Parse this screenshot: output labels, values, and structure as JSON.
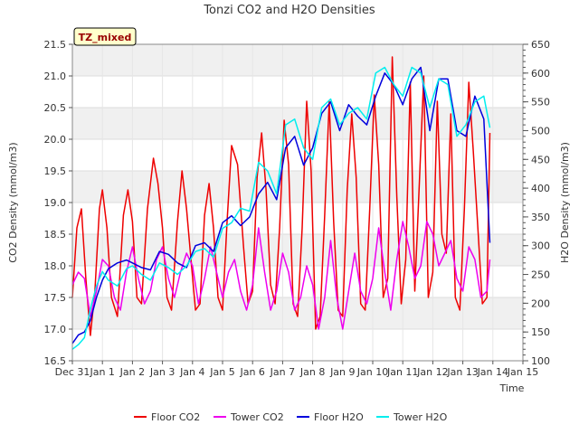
{
  "chart_data": {
    "type": "line",
    "title": "Tonzi CO2 and H2O Densities",
    "badge": "TZ_mixed",
    "xlabel": "Time",
    "ylabel_left": "CO2 Density (mmol/m3)",
    "ylabel_right": "H2O Density (mmol/m3)",
    "x_tick_labels": [
      "Dec 31",
      "Jan 1",
      "Jan 2",
      "Jan 3",
      "Jan 4",
      "Jan 5",
      "Jan 6",
      "Jan 7",
      "Jan 8",
      "Jan 9",
      "Jan 10",
      "Jan 11",
      "Jan 12",
      "Jan 13",
      "Jan 14",
      "Jan 15"
    ],
    "xlim": [
      0,
      15
    ],
    "ylim_left": [
      16.5,
      21.5
    ],
    "yticks_left": [
      "16.5",
      "17.0",
      "17.5",
      "18.0",
      "18.5",
      "19.0",
      "19.5",
      "20.0",
      "20.5",
      "21.0",
      "21.5"
    ],
    "ylim_right": [
      100,
      650
    ],
    "yticks_right": [
      "100",
      "150",
      "200",
      "250",
      "300",
      "350",
      "400",
      "450",
      "500",
      "550",
      "600",
      "650"
    ],
    "legend_position": "bottom-center",
    "series": [
      {
        "name": "Floor CO2",
        "axis": "left",
        "color": "#ee0000",
        "x": [
          0.0,
          0.15,
          0.3,
          0.45,
          0.6,
          0.75,
          0.9,
          1.0,
          1.15,
          1.3,
          1.5,
          1.7,
          1.85,
          2.0,
          2.15,
          2.3,
          2.5,
          2.7,
          2.85,
          3.0,
          3.15,
          3.3,
          3.5,
          3.65,
          3.8,
          3.95,
          4.1,
          4.25,
          4.4,
          4.55,
          4.7,
          4.85,
          5.0,
          5.15,
          5.3,
          5.5,
          5.7,
          5.85,
          6.0,
          6.15,
          6.3,
          6.45,
          6.6,
          6.75,
          6.9,
          7.05,
          7.2,
          7.35,
          7.5,
          7.65,
          7.8,
          7.95,
          8.1,
          8.25,
          8.4,
          8.55,
          8.7,
          8.85,
          9.0,
          9.15,
          9.3,
          9.45,
          9.6,
          9.75,
          9.9,
          10.05,
          10.2,
          10.35,
          10.5,
          10.65,
          10.8,
          10.95,
          11.1,
          11.25,
          11.4,
          11.55,
          11.7,
          11.85,
          12.0,
          12.15,
          12.3,
          12.45,
          12.6,
          12.75,
          12.9,
          13.05,
          13.2,
          13.35,
          13.5,
          13.65,
          13.8,
          13.9
        ],
        "values": [
          17.5,
          18.6,
          18.9,
          17.8,
          16.9,
          17.6,
          18.9,
          19.2,
          18.6,
          17.5,
          17.2,
          18.8,
          19.2,
          18.7,
          17.5,
          17.4,
          18.9,
          19.7,
          19.3,
          18.6,
          17.5,
          17.3,
          18.7,
          19.5,
          18.9,
          18.1,
          17.3,
          17.4,
          18.8,
          19.3,
          18.6,
          17.5,
          17.3,
          18.7,
          19.9,
          19.6,
          18.3,
          17.4,
          17.6,
          19.4,
          20.1,
          19.2,
          17.7,
          17.4,
          18.6,
          20.3,
          19.6,
          17.4,
          17.2,
          18.6,
          20.6,
          19.5,
          17.0,
          17.2,
          18.8,
          20.6,
          18.7,
          17.3,
          17.2,
          19.2,
          20.4,
          19.4,
          17.4,
          17.3,
          18.9,
          20.7,
          19.6,
          17.5,
          17.8,
          21.3,
          19.1,
          17.4,
          18.1,
          20.9,
          17.6,
          19.3,
          21.0,
          17.5,
          17.9,
          20.6,
          18.5,
          18.2,
          20.4,
          17.5,
          17.3,
          18.9,
          20.9,
          19.8,
          18.6,
          17.4,
          17.5,
          20.1
        ]
      },
      {
        "name": "Tower CO2",
        "axis": "left",
        "color": "#ee00ee",
        "x": [
          0.0,
          0.2,
          0.4,
          0.6,
          0.8,
          1.0,
          1.2,
          1.4,
          1.6,
          1.8,
          2.0,
          2.2,
          2.4,
          2.6,
          2.8,
          3.0,
          3.2,
          3.4,
          3.6,
          3.8,
          4.0,
          4.2,
          4.4,
          4.6,
          4.8,
          5.0,
          5.2,
          5.4,
          5.6,
          5.8,
          6.0,
          6.2,
          6.4,
          6.6,
          6.8,
          7.0,
          7.2,
          7.4,
          7.6,
          7.8,
          8.0,
          8.2,
          8.4,
          8.6,
          8.8,
          9.0,
          9.2,
          9.4,
          9.6,
          9.8,
          10.0,
          10.2,
          10.4,
          10.6,
          10.8,
          11.0,
          11.2,
          11.4,
          11.6,
          11.8,
          12.0,
          12.2,
          12.4,
          12.6,
          12.8,
          13.0,
          13.2,
          13.4,
          13.6,
          13.8,
          13.9
        ],
        "values": [
          17.7,
          17.9,
          17.8,
          17.2,
          17.6,
          18.1,
          18.0,
          17.5,
          17.3,
          17.9,
          18.3,
          17.8,
          17.4,
          17.6,
          18.1,
          18.3,
          17.8,
          17.5,
          17.9,
          18.2,
          18.0,
          17.4,
          17.8,
          18.3,
          17.9,
          17.5,
          17.9,
          18.1,
          17.6,
          17.3,
          17.7,
          18.6,
          17.9,
          17.3,
          17.6,
          18.2,
          17.9,
          17.3,
          17.5,
          18.0,
          17.7,
          17.0,
          17.5,
          18.4,
          17.5,
          17.0,
          17.6,
          18.2,
          17.6,
          17.4,
          17.8,
          18.6,
          17.9,
          17.3,
          18.1,
          18.7,
          18.3,
          17.8,
          18.0,
          18.7,
          18.5,
          18.0,
          18.2,
          18.4,
          17.8,
          17.6,
          18.3,
          18.1,
          17.5,
          17.6,
          18.1
        ]
      },
      {
        "name": "Floor H2O",
        "axis": "right",
        "color": "#0000dd",
        "x": [
          0.0,
          0.2,
          0.4,
          0.6,
          0.8,
          1.0,
          1.2,
          1.5,
          1.8,
          2.0,
          2.3,
          2.6,
          2.9,
          3.2,
          3.5,
          3.8,
          4.1,
          4.4,
          4.7,
          5.0,
          5.3,
          5.6,
          5.9,
          6.2,
          6.5,
          6.8,
          7.1,
          7.4,
          7.7,
          8.0,
          8.3,
          8.6,
          8.9,
          9.2,
          9.5,
          9.8,
          10.1,
          10.4,
          10.7,
          11.0,
          11.3,
          11.6,
          11.9,
          12.2,
          12.5,
          12.8,
          13.1,
          13.4,
          13.7,
          13.9
        ],
        "values": [
          130,
          145,
          150,
          170,
          210,
          240,
          260,
          270,
          275,
          270,
          262,
          258,
          290,
          285,
          270,
          262,
          300,
          305,
          290,
          340,
          352,
          335,
          350,
          390,
          410,
          380,
          470,
          490,
          440,
          470,
          530,
          550,
          500,
          545,
          525,
          510,
          560,
          600,
          580,
          545,
          590,
          610,
          500,
          590,
          590,
          500,
          490,
          560,
          520,
          305
        ]
      },
      {
        "name": "Tower H2O",
        "axis": "right",
        "color": "#00eeee",
        "x": [
          0.0,
          0.2,
          0.4,
          0.6,
          0.8,
          1.0,
          1.2,
          1.5,
          1.8,
          2.0,
          2.3,
          2.6,
          2.9,
          3.2,
          3.5,
          3.8,
          4.1,
          4.4,
          4.7,
          5.0,
          5.3,
          5.6,
          5.9,
          6.2,
          6.5,
          6.8,
          7.1,
          7.4,
          7.7,
          8.0,
          8.3,
          8.6,
          8.9,
          9.2,
          9.5,
          9.8,
          10.1,
          10.4,
          10.7,
          11.0,
          11.3,
          11.6,
          11.9,
          12.2,
          12.5,
          12.8,
          13.1,
          13.4,
          13.7,
          13.9
        ],
        "values": [
          120,
          128,
          140,
          190,
          230,
          255,
          240,
          230,
          260,
          265,
          250,
          240,
          270,
          262,
          250,
          265,
          290,
          295,
          280,
          330,
          340,
          365,
          360,
          445,
          430,
          390,
          510,
          520,
          470,
          450,
          540,
          555,
          510,
          530,
          540,
          520,
          600,
          610,
          580,
          560,
          610,
          600,
          540,
          590,
          580,
          490,
          510,
          550,
          560,
          505
        ]
      }
    ]
  }
}
